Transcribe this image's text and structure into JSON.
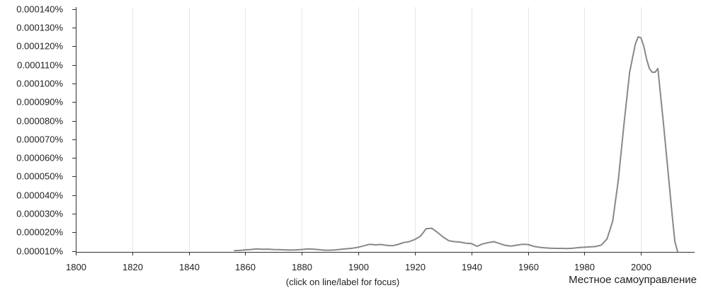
{
  "chart_data": {
    "type": "line",
    "title": "",
    "xlabel": "",
    "ylabel": "",
    "xlim": [
      1800,
      2019
    ],
    "ylim": [
      9.5e-06,
      0.000141
    ],
    "grid": true,
    "x_ticks": [
      1800,
      1820,
      1840,
      1860,
      1880,
      1900,
      1920,
      1940,
      1960,
      1980,
      2000
    ],
    "x_tick_labels": [
      "1800",
      "1820",
      "1840",
      "1860",
      "1880",
      "1900",
      "1920",
      "1940",
      "1960",
      "1980",
      "2000"
    ],
    "y_ticks": [
      1e-05,
      2e-05,
      3e-05,
      4e-05,
      5e-05,
      6e-05,
      7e-05,
      8e-05,
      9e-05,
      0.0001,
      0.00011,
      0.00012,
      0.00013,
      0.00014
    ],
    "y_tick_labels": [
      "0.000010%",
      "0.000020%",
      "0.000030%",
      "0.000040%",
      "0.000050%",
      "0.000060%",
      "0.000070%",
      "0.000080%",
      "0.000090%",
      "0.000100%",
      "0.000110%",
      "0.000120%",
      "0.000130%",
      "0.000140%"
    ],
    "note": "(click on line/label for focus)",
    "series": [
      {
        "name": "Местное самоуправление",
        "color": "#888888",
        "x": [
          1856,
          1858,
          1860,
          1862,
          1864,
          1866,
          1868,
          1870,
          1872,
          1874,
          1876,
          1878,
          1880,
          1882,
          1884,
          1886,
          1888,
          1890,
          1892,
          1894,
          1896,
          1898,
          1900,
          1902,
          1904,
          1906,
          1908,
          1910,
          1912,
          1914,
          1916,
          1918,
          1920,
          1922,
          1924,
          1926,
          1928,
          1930,
          1932,
          1934,
          1936,
          1938,
          1940,
          1942,
          1944,
          1946,
          1948,
          1950,
          1952,
          1954,
          1956,
          1958,
          1960,
          1962,
          1964,
          1966,
          1968,
          1970,
          1972,
          1974,
          1976,
          1978,
          1980,
          1982,
          1984,
          1986,
          1988,
          1990,
          1992,
          1994,
          1996,
          1998,
          1999,
          2000,
          2001,
          2002,
          2003,
          2004,
          2005,
          2006,
          2007,
          2008,
          2009,
          2010,
          2011,
          2012,
          2013
        ],
        "values": [
          1.02e-05,
          1.03e-05,
          1.06e-05,
          1.08e-05,
          1.11e-05,
          1.09e-05,
          1.1e-05,
          1.08e-05,
          1.07e-05,
          1.06e-05,
          1.05e-05,
          1.06e-05,
          1.08e-05,
          1.11e-05,
          1.1e-05,
          1.07e-05,
          1.04e-05,
          1.04e-05,
          1.06e-05,
          1.09e-05,
          1.12e-05,
          1.15e-05,
          1.2e-05,
          1.28e-05,
          1.36e-05,
          1.33e-05,
          1.35e-05,
          1.3e-05,
          1.28e-05,
          1.35e-05,
          1.45e-05,
          1.5e-05,
          1.62e-05,
          1.8e-05,
          2.2e-05,
          2.22e-05,
          2e-05,
          1.75e-05,
          1.55e-05,
          1.5e-05,
          1.48e-05,
          1.42e-05,
          1.4e-05,
          1.25e-05,
          1.38e-05,
          1.45e-05,
          1.5e-05,
          1.4e-05,
          1.3e-05,
          1.26e-05,
          1.31e-05,
          1.36e-05,
          1.35e-05,
          1.25e-05,
          1.2e-05,
          1.17e-05,
          1.15e-05,
          1.14e-05,
          1.14e-05,
          1.13e-05,
          1.15e-05,
          1.18e-05,
          1.2e-05,
          1.22e-05,
          1.24e-05,
          1.32e-05,
          1.65e-05,
          2.6e-05,
          4.8e-05,
          7.8e-05,
          0.000106,
          0.000121,
          0.000125,
          0.0001245,
          0.00012,
          0.000113,
          0.000108,
          0.000106,
          0.000106,
          0.000108,
          9.3e-05,
          7.8e-05,
          6.2e-05,
          4.6e-05,
          3e-05,
          1.5e-05,
          9.5e-06
        ]
      }
    ]
  }
}
